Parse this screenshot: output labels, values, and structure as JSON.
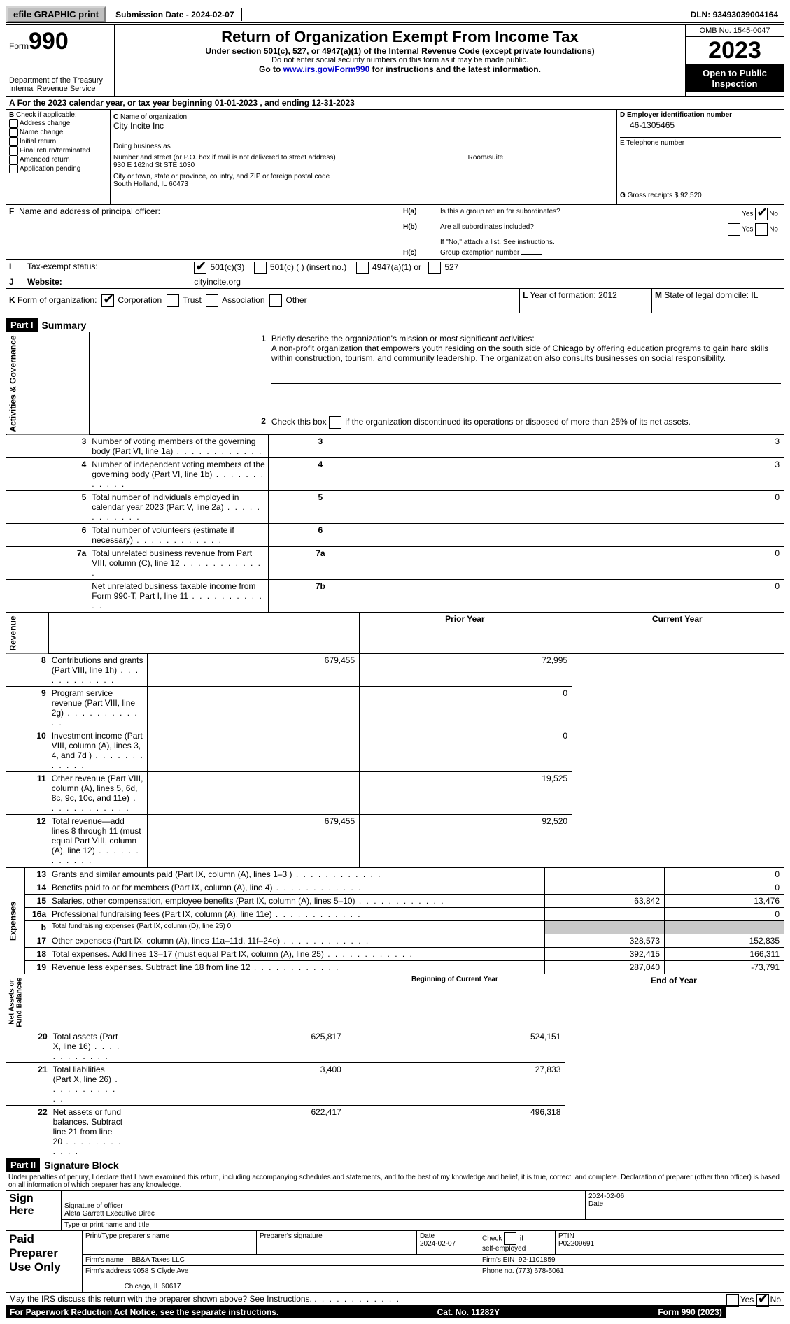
{
  "topbar": {
    "efile": "efile GRAPHIC print",
    "sub_label": "Submission Date - ",
    "sub_date": "2024-02-07",
    "dln_label": "DLN: ",
    "dln": "93493039004164"
  },
  "hdr": {
    "form_word": "Form",
    "form_num": "990",
    "dept": "Department of the Treasury\nInternal Revenue Service",
    "title": "Return of Organization Exempt From Income Tax",
    "subtitle": "Under section 501(c), 527, or 4947(a)(1) of the Internal Revenue Code (except private foundations)",
    "note": "Do not enter social security numbers on this form as it may be made public.",
    "goto_pre": "Go to ",
    "goto_link": "www.irs.gov/Form990",
    "goto_post": " for instructions and the latest information.",
    "omb": "OMB No. 1545-0047",
    "year": "2023",
    "open": "Open to Public Inspection"
  },
  "lineA": {
    "pre": "For the 2023 calendar year, or tax year beginning ",
    "begin": "01-01-2023",
    "mid": " , and ending ",
    "end": "12-31-2023"
  },
  "boxB": {
    "label": "Check if applicable:",
    "items": [
      "Address change",
      "Name change",
      "Initial return",
      "Final return/terminated",
      "Amended return",
      "Application pending"
    ]
  },
  "boxC": {
    "name_lbl": "Name of organization",
    "name": "City Incite Inc",
    "dba_lbl": "Doing business as",
    "addr_lbl": "Number and street (or P.O. box if mail is not delivered to street address)",
    "room_lbl": "Room/suite",
    "addr": "930 E 162nd St STE 1030",
    "city_lbl": "City or town, state or province, country, and ZIP or foreign postal code",
    "city": "South Holland, IL  60473"
  },
  "boxD": {
    "lbl": "Employer identification number",
    "val": "46-1305465"
  },
  "boxE": {
    "lbl": "E Telephone number"
  },
  "boxG": {
    "lbl": "Gross receipts $",
    "val": "92,520"
  },
  "boxF": {
    "lbl": "Name and address of principal officer:"
  },
  "boxH": {
    "a": "Is this a group return for subordinates?",
    "b": "Are all subordinates included?",
    "b2": "If \"No,\" attach a list. See instructions.",
    "c": "Group exemption number",
    "ha_no_checked": true
  },
  "boxI": {
    "lbl": "Tax-exempt status:",
    "o1": "501(c)(3)",
    "o2": "501(c) (  ) (insert no.)",
    "o3": "4947(a)(1) or",
    "o4": "527",
    "checked": 1
  },
  "boxJ": {
    "lbl": "Website:",
    "val": "cityincite.org"
  },
  "boxK": {
    "lbl": "Form of organization:",
    "opts": [
      "Corporation",
      "Trust",
      "Association",
      "Other"
    ],
    "checked": 0
  },
  "boxL": {
    "lbl": "Year of formation:",
    "val": "2012"
  },
  "boxM": {
    "lbl": "State of legal domicile:",
    "val": "IL"
  },
  "part1": {
    "hdr": "Part I",
    "title": "Summary"
  },
  "summary": {
    "q1": "Briefly describe the organization's mission or most significant activities:",
    "mission": "A non-profit organization that empowers youth residing on the south side of Chicago by offering education programs to gain hard skills within construction, tourism, and community leadership. The organization also consults businesses on social responsibility.",
    "q2_pre": "Check this box ",
    "q2_post": " if the organization discontinued its operations or disposed of more than 25% of its net assets.",
    "rows_ag": [
      {
        "n": "3",
        "t": "Number of voting members of the governing body (Part VI, line 1a)",
        "box": "3",
        "v": "3"
      },
      {
        "n": "4",
        "t": "Number of independent voting members of the governing body (Part VI, line 1b)",
        "box": "4",
        "v": "3"
      },
      {
        "n": "5",
        "t": "Total number of individuals employed in calendar year 2023 (Part V, line 2a)",
        "box": "5",
        "v": "0"
      },
      {
        "n": "6",
        "t": "Total number of volunteers (estimate if necessary)",
        "box": "6",
        "v": ""
      },
      {
        "n": "7a",
        "t": "Total unrelated business revenue from Part VIII, column (C), line 12",
        "box": "7a",
        "v": "0"
      },
      {
        "n": "",
        "t": "Net unrelated business taxable income from Form 990-T, Part I, line 11",
        "box": "7b",
        "v": "0"
      }
    ],
    "py_hdr": "Prior Year",
    "cy_hdr": "Current Year",
    "rows_rev": [
      {
        "n": "8",
        "t": "Contributions and grants (Part VIII, line 1h)",
        "py": "679,455",
        "cy": "72,995"
      },
      {
        "n": "9",
        "t": "Program service revenue (Part VIII, line 2g)",
        "py": "",
        "cy": "0"
      },
      {
        "n": "10",
        "t": "Investment income (Part VIII, column (A), lines 3, 4, and 7d )",
        "py": "",
        "cy": "0"
      },
      {
        "n": "11",
        "t": "Other revenue (Part VIII, column (A), lines 5, 6d, 8c, 9c, 10c, and 11e)",
        "py": "",
        "cy": "19,525"
      },
      {
        "n": "12",
        "t": "Total revenue—add lines 8 through 11 (must equal Part VIII, column (A), line 12)",
        "py": "679,455",
        "cy": "92,520"
      }
    ],
    "rows_exp": [
      {
        "n": "13",
        "t": "Grants and similar amounts paid (Part IX, column (A), lines 1–3 )",
        "py": "",
        "cy": "0"
      },
      {
        "n": "14",
        "t": "Benefits paid to or for members (Part IX, column (A), line 4)",
        "py": "",
        "cy": "0"
      },
      {
        "n": "15",
        "t": "Salaries, other compensation, employee benefits (Part IX, column (A), lines 5–10)",
        "py": "63,842",
        "cy": "13,476"
      },
      {
        "n": "16a",
        "t": "Professional fundraising fees (Part IX, column (A), line 11e)",
        "py": "",
        "cy": "0"
      },
      {
        "n": "b",
        "t": "Total fundraising expenses (Part IX, column (D), line 25) 0",
        "py": "GRAY",
        "cy": "GRAY",
        "small": true
      },
      {
        "n": "17",
        "t": "Other expenses (Part IX, column (A), lines 11a–11d, 11f–24e)",
        "py": "328,573",
        "cy": "152,835"
      },
      {
        "n": "18",
        "t": "Total expenses. Add lines 13–17 (must equal Part IX, column (A), line 25)",
        "py": "392,415",
        "cy": "166,311"
      },
      {
        "n": "19",
        "t": "Revenue less expenses. Subtract line 18 from line 12",
        "py": "287,040",
        "cy": "-73,791"
      }
    ],
    "bcy_hdr": "Beginning of Current Year",
    "eoy_hdr": "End of Year",
    "rows_na": [
      {
        "n": "20",
        "t": "Total assets (Part X, line 16)",
        "py": "625,817",
        "cy": "524,151"
      },
      {
        "n": "21",
        "t": "Total liabilities (Part X, line 26)",
        "py": "3,400",
        "cy": "27,833"
      },
      {
        "n": "22",
        "t": "Net assets or fund balances. Subtract line 21 from line 20",
        "py": "622,417",
        "cy": "496,318"
      }
    ],
    "vlabels": {
      "ag": "Activities & Governance",
      "rev": "Revenue",
      "exp": "Expenses",
      "na": "Net Assets or\nFund Balances"
    }
  },
  "part2": {
    "hdr": "Part II",
    "title": "Signature Block",
    "decl": "Under penalties of perjury, I declare that I have examined this return, including accompanying schedules and statements, and to the best of my knowledge and belief, it is true, correct, and complete. Declaration of preparer (other than officer) is based on all information of which preparer has any knowledge."
  },
  "sign": {
    "sign_here": "Sign Here",
    "sig_off_lbl": "Signature of officer",
    "date_lbl": "Date",
    "sig_date": "2024-02-06",
    "officer": "Aleta Garrett  Executive Direc",
    "type_lbl": "Type or print name and title",
    "paid": "Paid Preparer Use Only",
    "print_lbl": "Print/Type preparer's name",
    "psig_lbl": "Preparer's signature",
    "pdate_lbl": "Date",
    "pdate": "2024-02-07",
    "check_lbl": "Check",
    "if_lbl": "if",
    "self_lbl": "self-employed",
    "ptin_lbl": "PTIN",
    "ptin": "P02209691",
    "firm_name_lbl": "Firm's name",
    "firm_name": "BB&A Taxes LLC",
    "firm_ein_lbl": "Firm's EIN",
    "firm_ein": "92-1101859",
    "firm_addr_lbl": "Firm's address",
    "firm_addr1": "9058 S Clyde Ave",
    "firm_addr2": "Chicago, IL  60617",
    "phone_lbl": "Phone no.",
    "phone": "(773) 678-5061",
    "discuss": "May the IRS discuss this return with the preparer shown above? See Instructions.",
    "discuss_no_checked": true
  },
  "footer": {
    "left": "For Paperwork Reduction Act Notice, see the separate instructions.",
    "mid": "Cat. No. 11282Y",
    "right": "Form 990 (2023)"
  }
}
